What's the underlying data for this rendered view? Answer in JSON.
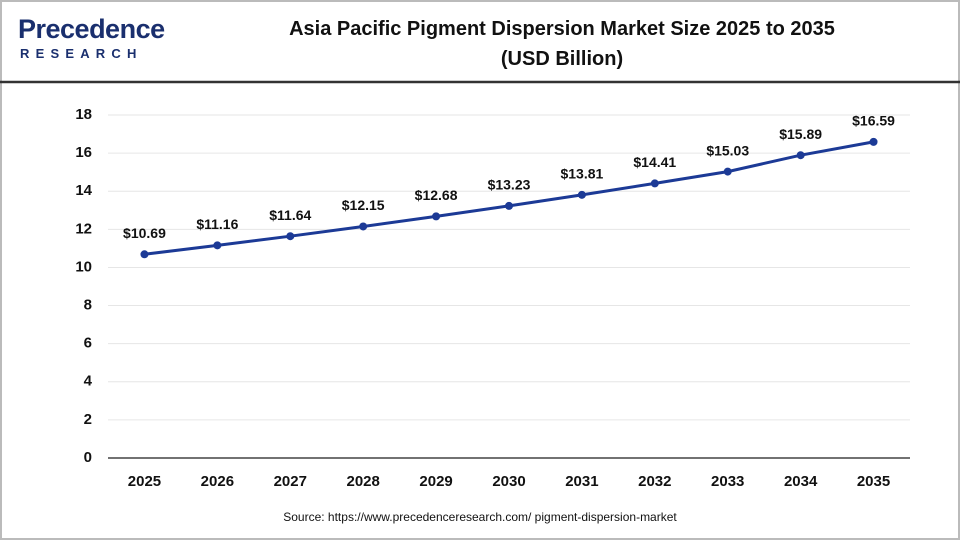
{
  "logo": {
    "name": "Precedence",
    "tagline": "RESEARCH"
  },
  "chart_data": {
    "type": "line",
    "title": "Asia Pacific Pigment Dispersion Market Size 2025 to 2035 (USD Billion)",
    "categories": [
      "2025",
      "2026",
      "2027",
      "2028",
      "2029",
      "2030",
      "2031",
      "2032",
      "2033",
      "2034",
      "2035"
    ],
    "values": [
      10.69,
      11.16,
      11.64,
      12.15,
      12.68,
      13.23,
      13.81,
      14.41,
      15.03,
      15.89,
      16.59
    ],
    "value_labels": [
      "$10.69",
      "$11.16",
      "$11.64",
      "$12.15",
      "$12.68",
      "$13.23",
      "$13.81",
      "$14.41",
      "$15.03",
      "$15.89",
      "$16.59"
    ],
    "color": "#1c3a96",
    "ylim": [
      0,
      18
    ],
    "yticks": [
      0,
      2,
      4,
      6,
      8,
      10,
      12,
      14,
      16,
      18
    ],
    "grid": true,
    "source": "Source: https://www.precedenceresearch.com/ pigment-dispersion-market"
  }
}
